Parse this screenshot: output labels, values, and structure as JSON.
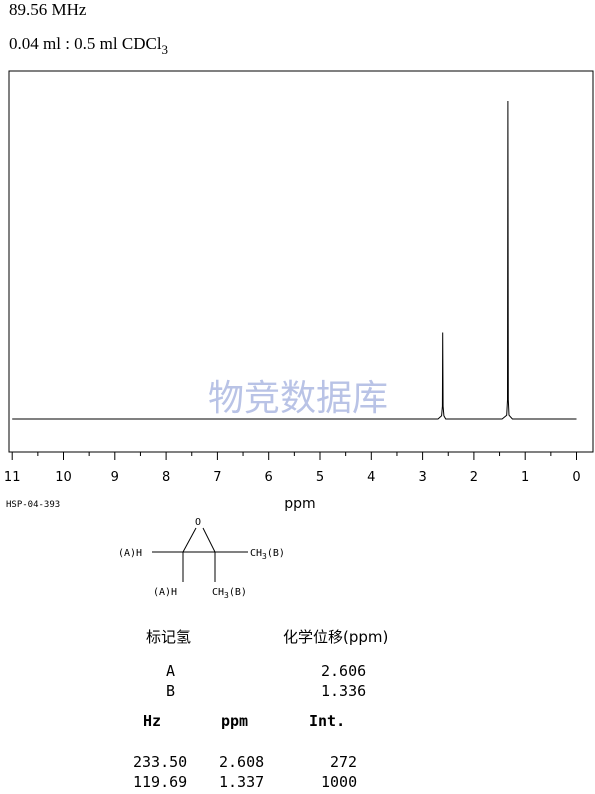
{
  "header": {
    "frequency": "89.56 MHz",
    "solvent_main": "0.04 ml : 0.5 ml CDCl",
    "solvent_sub": "3"
  },
  "watermark": "物竞数据库",
  "sample_id": "HSP-04-393",
  "chart_data": {
    "type": "line",
    "xlabel": "ppm",
    "xlim": [
      11,
      0
    ],
    "x_reversed": true,
    "x_ticks": [
      "11",
      "10",
      "9",
      "8",
      "7",
      "6",
      "5",
      "4",
      "3",
      "2",
      "1",
      "0"
    ],
    "grid": false,
    "peaks": [
      {
        "ppm": 2.608,
        "intensity": 272
      },
      {
        "ppm": 1.337,
        "intensity": 1000
      }
    ],
    "series": [
      {
        "x": [
          11,
          2.7,
          2.63,
          2.615,
          2.608,
          2.6,
          2.585,
          2.55,
          1.45,
          1.36,
          1.345,
          1.337,
          1.329,
          1.315,
          1.25,
          0
        ],
        "y": [
          0,
          0,
          10,
          40,
          272,
          40,
          10,
          0,
          0,
          12,
          60,
          1000,
          60,
          12,
          0,
          0
        ]
      }
    ]
  },
  "structure": {
    "oxygen": "O",
    "label_left_top": "(A)H",
    "label_right_top": "CH",
    "label_right_top_sub": "3",
    "label_right_top_tag": "(B)",
    "label_left_bottom": "(A)H",
    "label_right_bottom": "CH",
    "label_right_bottom_sub": "3",
    "label_right_bottom_tag": "(B)"
  },
  "assignment": {
    "col_label": "标记氢",
    "col_shift": "化学位移(ppm)",
    "rows": [
      {
        "label": "A",
        "shift": "2.606"
      },
      {
        "label": "B",
        "shift": "1.336"
      }
    ]
  },
  "peak_table": {
    "headers": [
      "Hz",
      "ppm",
      "Int."
    ],
    "rows": [
      [
        "233.50",
        "2.608",
        "272"
      ],
      [
        "119.69",
        "1.337",
        "1000"
      ]
    ]
  }
}
